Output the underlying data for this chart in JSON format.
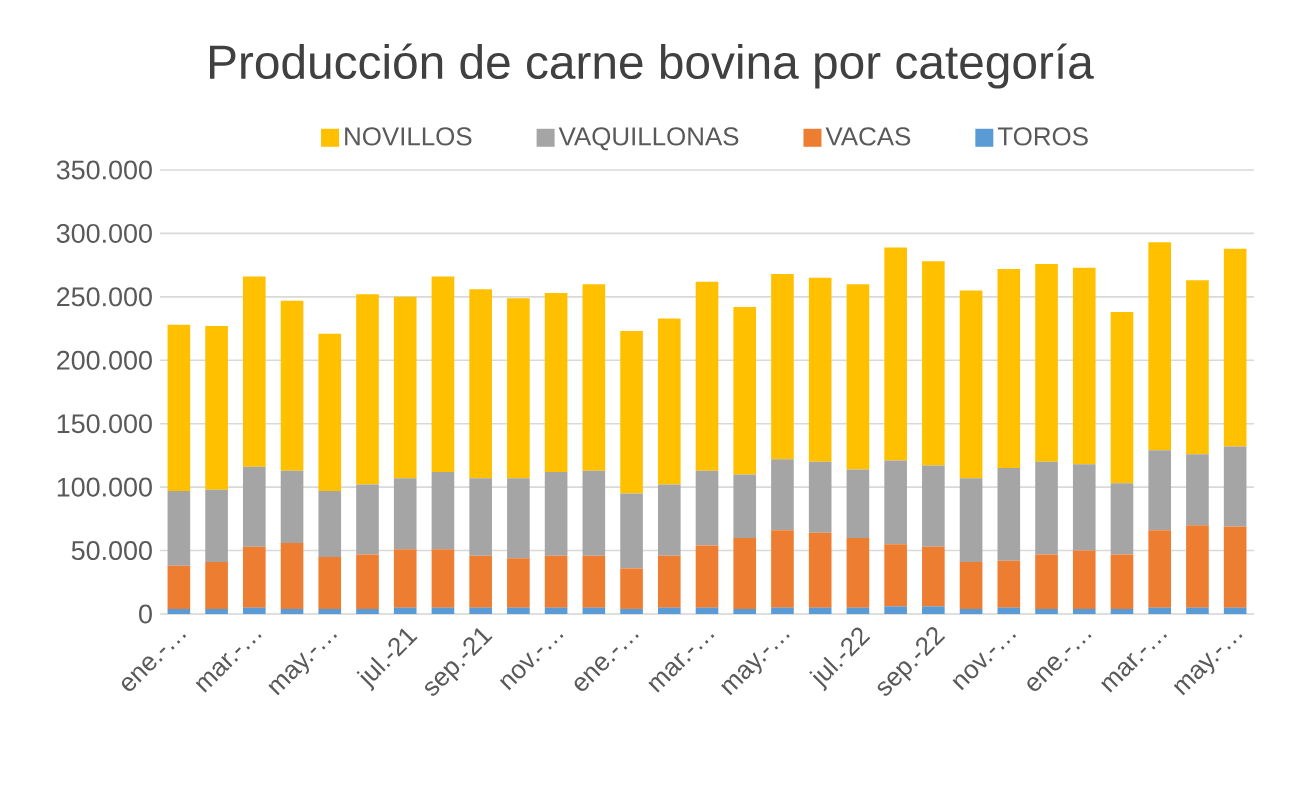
{
  "chart_data": {
    "type": "bar",
    "title": "Producción de carne bovina por categoría",
    "stacked": true,
    "legend": "top",
    "grid": "y",
    "categories": [
      "ene.-…",
      null,
      "mar.-…",
      null,
      "may.-…",
      null,
      "jul.-21",
      null,
      "sep.-21",
      null,
      "nov.-…",
      null,
      "ene.-…",
      null,
      "mar.-…",
      null,
      "may.-…",
      null,
      "jul.-22",
      null,
      "sep.-22",
      null,
      "nov.-…",
      null,
      "ene.-…",
      null,
      "mar.-…",
      null,
      "may.-…"
    ],
    "ylim": [
      0,
      350000
    ],
    "yticks": [
      0,
      {
        "value": 50000,
        "label": "50.000"
      },
      {
        "value": 100000,
        "label": "100.000"
      },
      {
        "value": 150000,
        "label": "150.000"
      },
      {
        "value": 200000,
        "label": "200.000"
      },
      {
        "value": 250000,
        "label": "250.000"
      },
      {
        "value": 300000,
        "label": "300.000"
      },
      {
        "value": 350000,
        "label": "350.000"
      }
    ],
    "series": [
      {
        "name": "TOROS",
        "color": "#5b9bd5",
        "values": [
          4000,
          4000,
          5000,
          4000,
          4000,
          4000,
          5000,
          5000,
          5000,
          5000,
          5000,
          5000,
          4000,
          5000,
          5000,
          4000,
          5000,
          5000,
          5000,
          6000,
          6000,
          4000,
          5000,
          4000,
          4000,
          4000,
          5000,
          5000,
          5000
        ]
      },
      {
        "name": "VACAS",
        "color": "#ed7d31",
        "values": [
          34000,
          37000,
          48000,
          52000,
          41000,
          43000,
          46000,
          46000,
          41000,
          39000,
          41000,
          41000,
          32000,
          41000,
          49000,
          56000,
          61000,
          59000,
          55000,
          49000,
          47000,
          37000,
          37000,
          43000,
          46000,
          43000,
          61000,
          65000,
          64000
        ]
      },
      {
        "name": "VAQUILLONAS",
        "color": "#a5a5a5",
        "values": [
          59000,
          57000,
          63000,
          57000,
          52000,
          55000,
          56000,
          61000,
          61000,
          63000,
          66000,
          67000,
          59000,
          56000,
          59000,
          50000,
          56000,
          56000,
          54000,
          66000,
          64000,
          66000,
          73000,
          73000,
          68000,
          56000,
          63000,
          56000,
          63000
        ]
      },
      {
        "name": "NOVILLOS",
        "color": "#ffc000",
        "values": [
          131000,
          129000,
          150000,
          134000,
          124000,
          150000,
          143000,
          154000,
          149000,
          142000,
          141000,
          147000,
          128000,
          131000,
          149000,
          132000,
          146000,
          145000,
          146000,
          168000,
          161000,
          148000,
          157000,
          156000,
          155000,
          135000,
          164000,
          137000,
          156000
        ]
      }
    ]
  }
}
